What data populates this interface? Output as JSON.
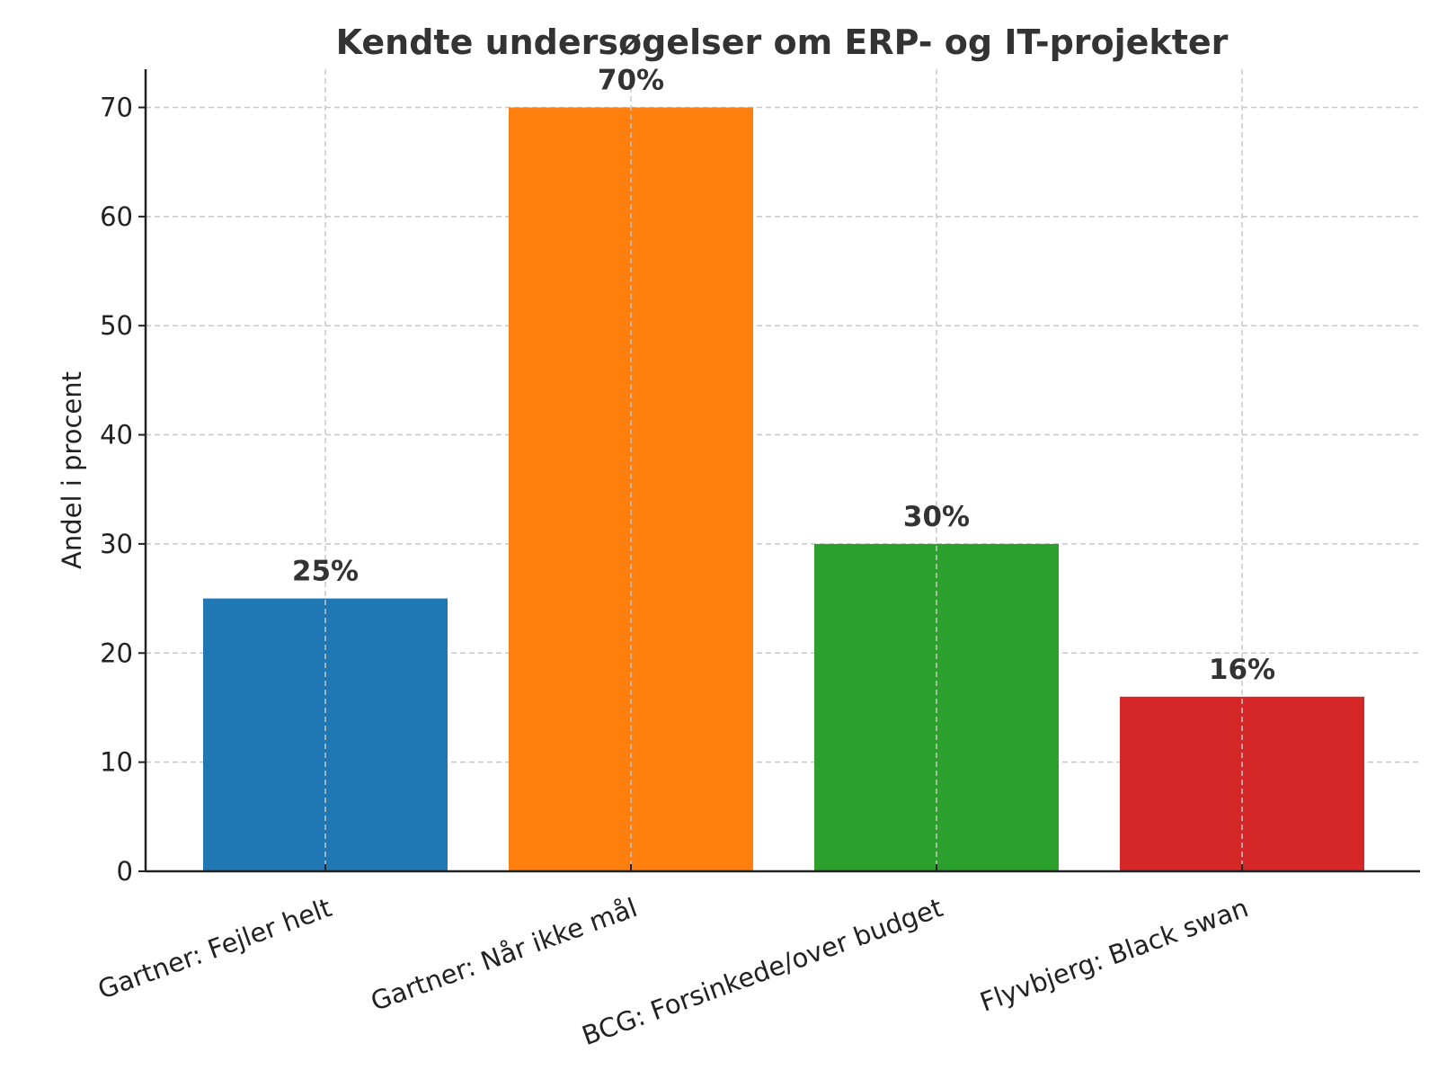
{
  "chart_data": {
    "type": "bar",
    "title": "Kendte undersøgelser om ERP- og IT-projekter",
    "xlabel": "",
    "ylabel": "Andel i procent",
    "categories": [
      "Gartner: Fejler helt",
      "Gartner: Når ikke mål",
      "BCG: Forsinkede/over budget",
      "Flyvbjerg: Black swan"
    ],
    "values": [
      25,
      70,
      30,
      16
    ],
    "data_labels": [
      "25%",
      "70%",
      "30%",
      "16%"
    ],
    "colors": [
      "#1f77b4",
      "#ff7f0e",
      "#2ca02c",
      "#d62728"
    ],
    "ylim": [
      0,
      73.5
    ],
    "yticks": [
      0,
      10,
      20,
      30,
      40,
      50,
      60,
      70
    ],
    "grid": true,
    "legend": "none"
  }
}
